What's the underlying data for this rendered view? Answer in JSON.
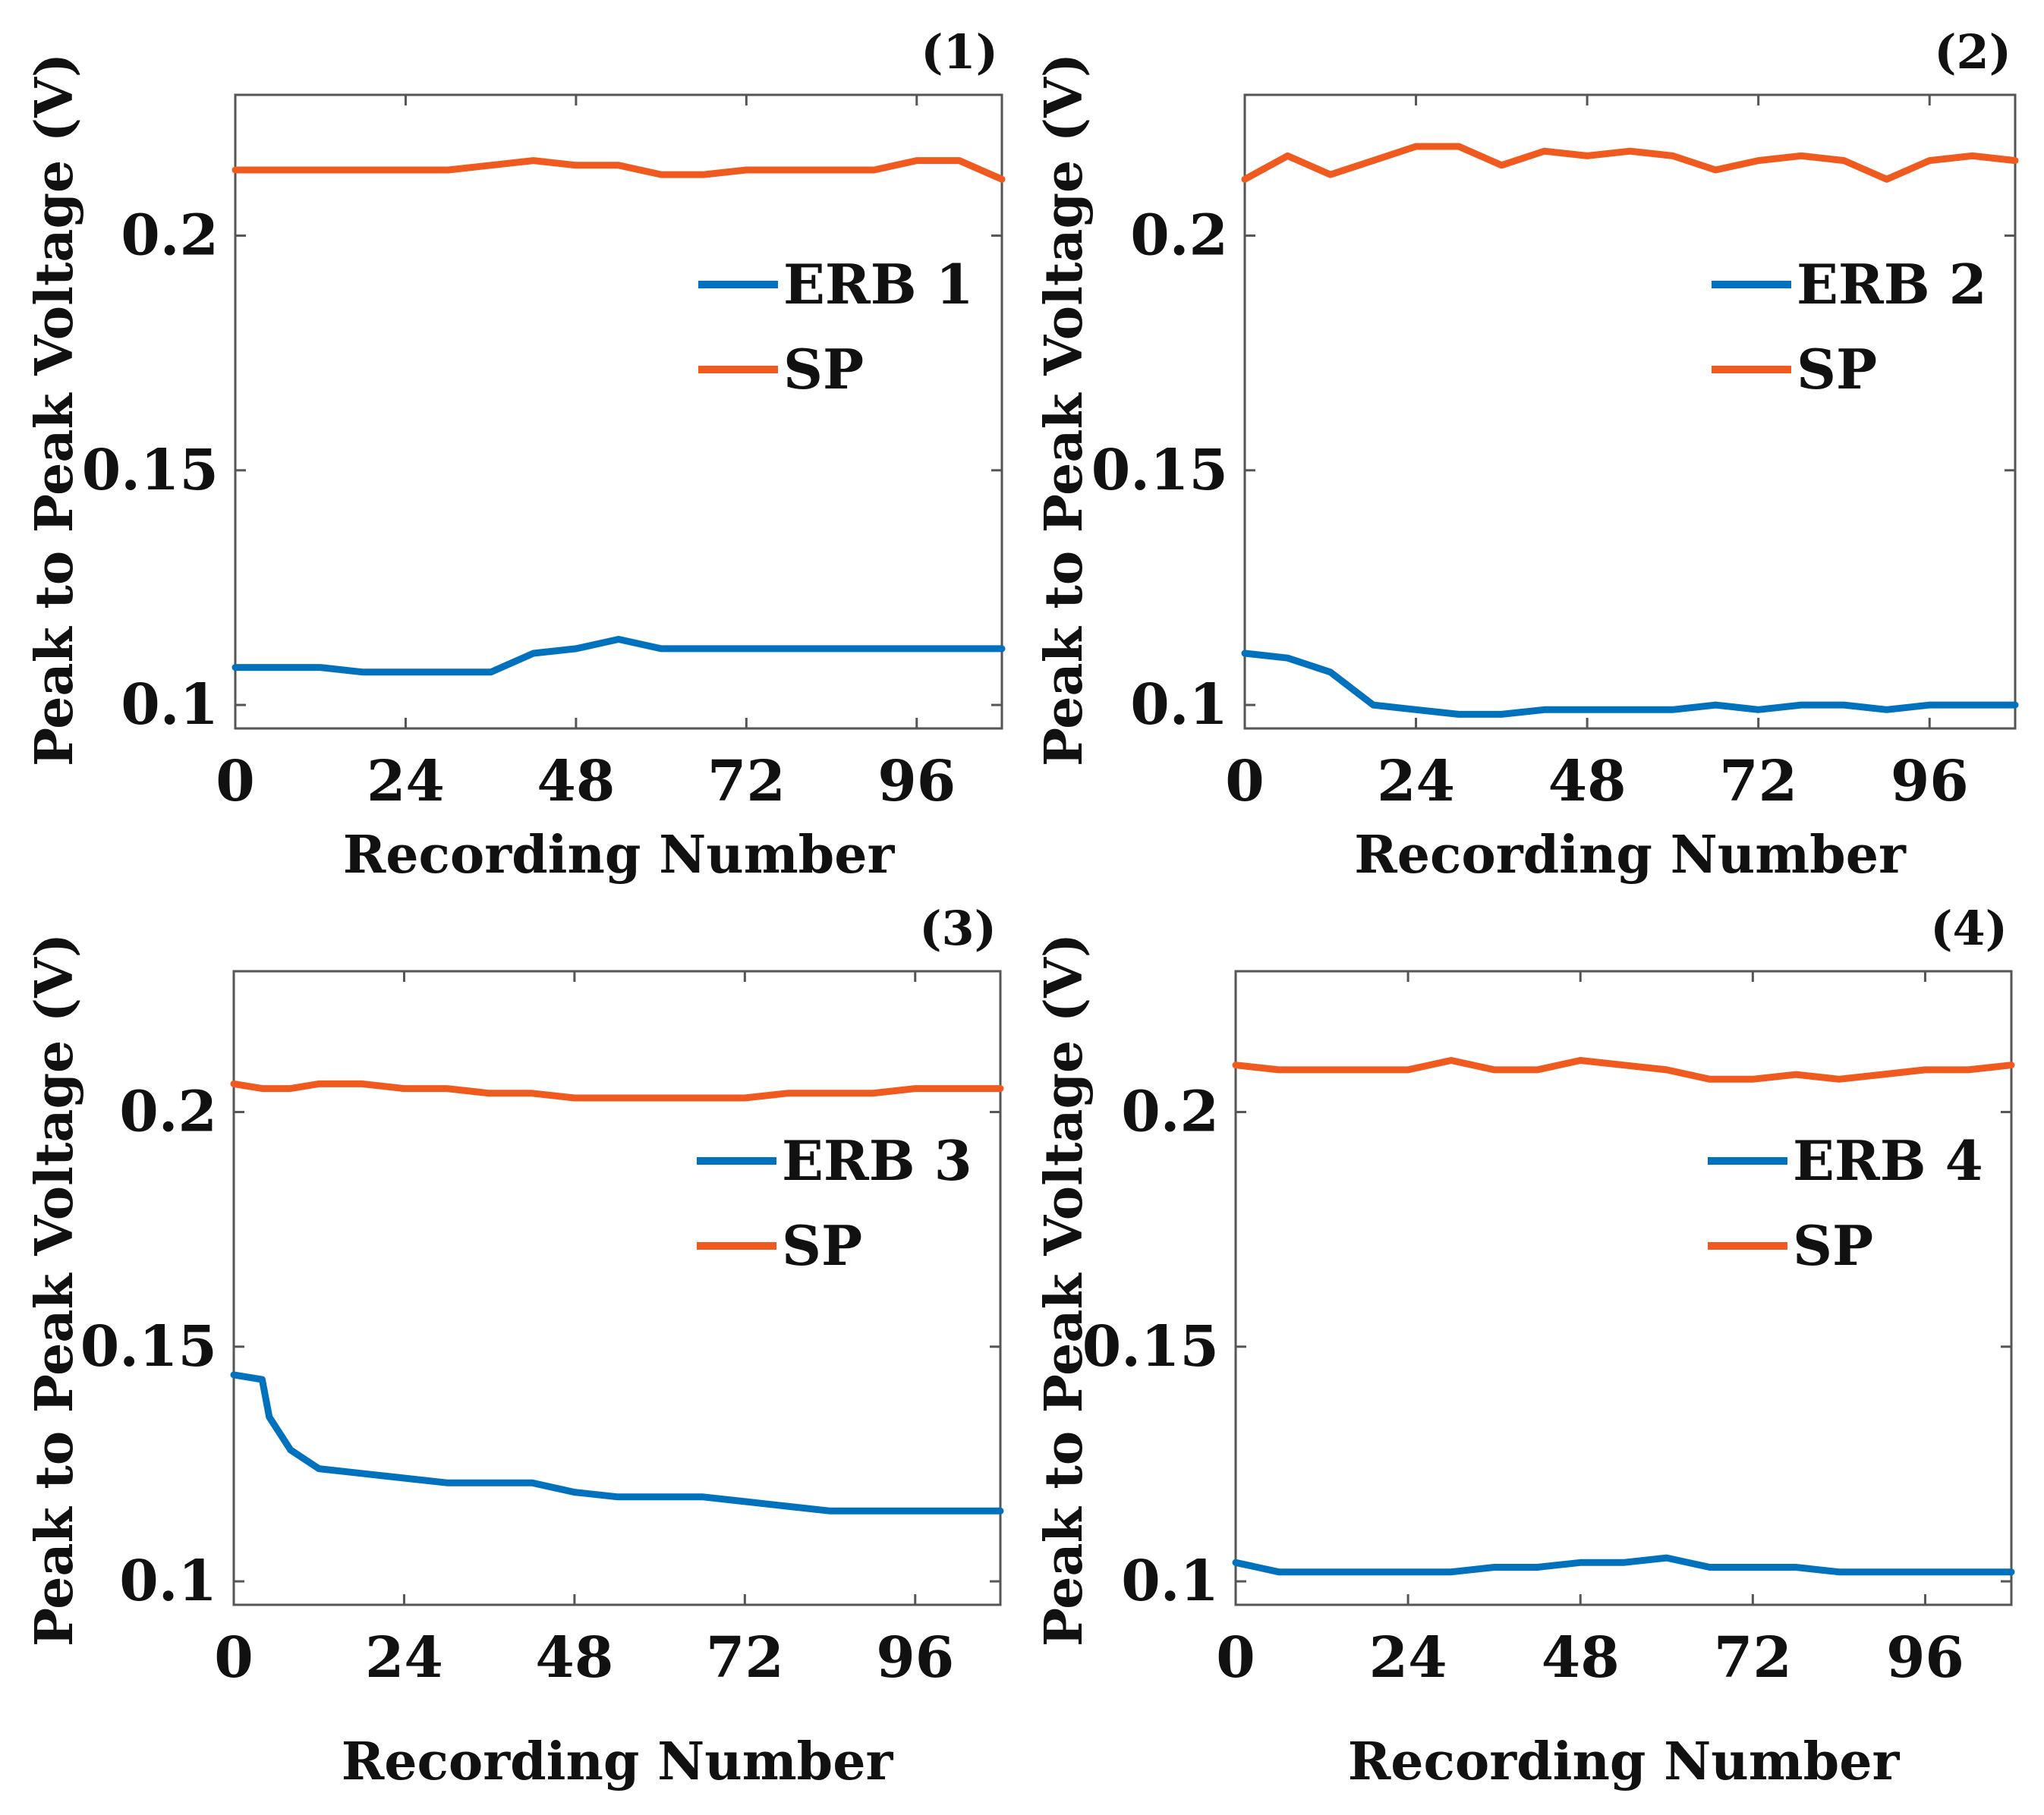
{
  "figure": {
    "colors": {
      "erb": "#0072BD",
      "sp": "#F05A1E",
      "axis": "#555555"
    }
  },
  "chart_data": [
    {
      "type": "line",
      "panel_label": "(1)",
      "xlabel": "Recording Number",
      "ylabel": "Peak to Peak Voltage (V)",
      "xlim": [
        0,
        108
      ],
      "ylim": [
        0.095,
        0.23
      ],
      "xticks": [
        0,
        24,
        48,
        72,
        96
      ],
      "xtick_labels": [
        "0",
        "24",
        "48",
        "72",
        "96"
      ],
      "yticks": [
        0.1,
        0.15,
        0.2
      ],
      "ytick_labels": [
        "0.1",
        "0.15",
        "0.2"
      ],
      "grid": false,
      "legend_position": "upper-right",
      "x": [
        0,
        6,
        12,
        18,
        24,
        30,
        36,
        42,
        48,
        54,
        60,
        66,
        72,
        78,
        84,
        90,
        96,
        102,
        108
      ],
      "series": [
        {
          "name": "ERB 1",
          "values": [
            0.108,
            0.108,
            0.108,
            0.107,
            0.107,
            0.107,
            0.107,
            0.111,
            0.112,
            0.114,
            0.112,
            0.112,
            0.112,
            0.112,
            0.112,
            0.112,
            0.112,
            0.112,
            0.112
          ]
        },
        {
          "name": "SP",
          "values": [
            0.214,
            0.214,
            0.214,
            0.214,
            0.214,
            0.214,
            0.215,
            0.216,
            0.215,
            0.215,
            0.213,
            0.213,
            0.214,
            0.214,
            0.214,
            0.214,
            0.216,
            0.216,
            0.212
          ]
        }
      ]
    },
    {
      "type": "line",
      "panel_label": "(2)",
      "xlabel": "Recording Number",
      "ylabel": "Peak to Peak Voltage (V)",
      "xlim": [
        0,
        108
      ],
      "ylim": [
        0.095,
        0.23
      ],
      "xticks": [
        0,
        24,
        48,
        72,
        96
      ],
      "xtick_labels": [
        "0",
        "24",
        "48",
        "72",
        "96"
      ],
      "yticks": [
        0.1,
        0.15,
        0.2
      ],
      "ytick_labels": [
        "0.1",
        "0.15",
        "0.2"
      ],
      "grid": false,
      "legend_position": "upper-right",
      "x": [
        0,
        6,
        12,
        18,
        24,
        30,
        36,
        42,
        48,
        54,
        60,
        66,
        72,
        78,
        84,
        90,
        96,
        102,
        108
      ],
      "series": [
        {
          "name": "ERB 2",
          "values": [
            0.111,
            0.11,
            0.107,
            0.1,
            0.099,
            0.098,
            0.098,
            0.099,
            0.099,
            0.099,
            0.099,
            0.1,
            0.099,
            0.1,
            0.1,
            0.099,
            0.1,
            0.1,
            0.1
          ]
        },
        {
          "name": "SP",
          "values": [
            0.212,
            0.217,
            0.213,
            0.216,
            0.219,
            0.219,
            0.215,
            0.218,
            0.217,
            0.218,
            0.217,
            0.214,
            0.216,
            0.217,
            0.216,
            0.212,
            0.216,
            0.217,
            0.216
          ]
        }
      ]
    },
    {
      "type": "line",
      "panel_label": "(3)",
      "xlabel": "Recording Number",
      "ylabel": "Peak to Peak Voltage (V)",
      "xlim": [
        0,
        108
      ],
      "ylim": [
        0.095,
        0.23
      ],
      "xticks": [
        0,
        24,
        48,
        72,
        96
      ],
      "xtick_labels": [
        "0",
        "24",
        "48",
        "72",
        "96"
      ],
      "yticks": [
        0.1,
        0.15,
        0.2
      ],
      "ytick_labels": [
        "0.1",
        "0.15",
        "0.2"
      ],
      "grid": false,
      "legend_position": "upper-right",
      "x": [
        0,
        4,
        5,
        8,
        12,
        18,
        24,
        30,
        36,
        42,
        48,
        54,
        60,
        66,
        72,
        78,
        84,
        90,
        96,
        102,
        108
      ],
      "series": [
        {
          "name": "ERB 3",
          "values": [
            0.144,
            0.143,
            0.135,
            0.128,
            0.124,
            0.123,
            0.122,
            0.121,
            0.121,
            0.121,
            0.119,
            0.118,
            0.118,
            0.118,
            0.117,
            0.116,
            0.115,
            0.115,
            0.115,
            0.115,
            0.115
          ]
        },
        {
          "name": "SP",
          "values": [
            0.206,
            0.205,
            0.205,
            0.205,
            0.206,
            0.206,
            0.205,
            0.205,
            0.204,
            0.204,
            0.203,
            0.203,
            0.203,
            0.203,
            0.203,
            0.204,
            0.204,
            0.204,
            0.205,
            0.205,
            0.205
          ]
        }
      ]
    },
    {
      "type": "line",
      "panel_label": "(4)",
      "xlabel": "Recording Number",
      "ylabel": "Peak to Peak Voltage (V)",
      "xlim": [
        0,
        108
      ],
      "ylim": [
        0.095,
        0.23
      ],
      "xticks": [
        0,
        24,
        48,
        72,
        96
      ],
      "xtick_labels": [
        "0",
        "24",
        "48",
        "72",
        "96"
      ],
      "yticks": [
        0.1,
        0.15,
        0.2
      ],
      "ytick_labels": [
        "0.1",
        "0.15",
        "0.2"
      ],
      "grid": false,
      "legend_position": "upper-right",
      "x": [
        0,
        6,
        12,
        18,
        24,
        30,
        36,
        42,
        48,
        54,
        60,
        66,
        72,
        78,
        84,
        90,
        96,
        102,
        108
      ],
      "series": [
        {
          "name": "ERB 4",
          "values": [
            0.104,
            0.102,
            0.102,
            0.102,
            0.102,
            0.102,
            0.103,
            0.103,
            0.104,
            0.104,
            0.105,
            0.103,
            0.103,
            0.103,
            0.102,
            0.102,
            0.102,
            0.102,
            0.102
          ]
        },
        {
          "name": "SP",
          "values": [
            0.21,
            0.209,
            0.209,
            0.209,
            0.209,
            0.211,
            0.209,
            0.209,
            0.211,
            0.21,
            0.209,
            0.207,
            0.207,
            0.208,
            0.207,
            0.208,
            0.209,
            0.209,
            0.21
          ]
        }
      ]
    }
  ]
}
